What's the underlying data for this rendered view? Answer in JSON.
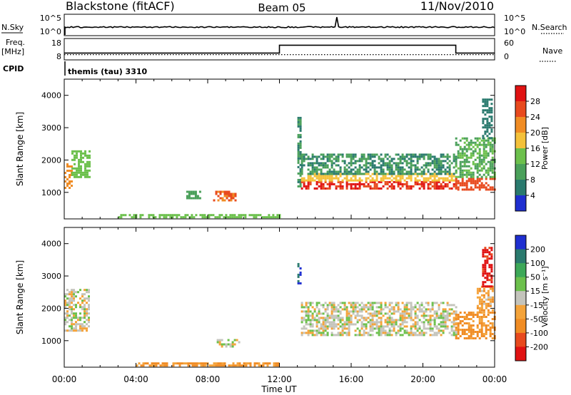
{
  "header": {
    "title": "Blackstone (fitACF)",
    "beam": "Beam 05",
    "date": "11/Nov/2010"
  },
  "colors": {
    "axis": "#000000",
    "neutral_gray": "#c4c4bc",
    "power_scale": [
      "#1f2fd0",
      "#2a7a6e",
      "#4aa05a",
      "#6cc04c",
      "#f4c13a",
      "#f08c24",
      "#e84a1e",
      "#e01212"
    ],
    "velocity_scale": [
      "#1f2fd0",
      "#2a7a6e",
      "#3da858",
      "#6cc04c",
      "#c4c4bc",
      "#f4a33a",
      "#f08c24",
      "#e84a1e",
      "#e01212"
    ]
  },
  "chart_data": [
    {
      "type": "line",
      "title": "",
      "panel": "noise",
      "left_label": "N.Sky",
      "right_label": "N.Search",
      "left_ticks": [
        "10^5",
        "10^0"
      ],
      "right_ticks": [
        "10^5",
        "10^0"
      ],
      "description_values": {
        "n_sky_level": "near 10^0 with small fluctuations, one spike near 15:10 UT",
        "n_search_level": "near 10^0"
      }
    },
    {
      "type": "line",
      "title": "",
      "panel": "frequency",
      "left_label": "Freq.",
      "left_unit": "[MHz]",
      "right_label": "Nave",
      "left_ticks": [
        "18",
        "8"
      ],
      "right_ticks": [
        "60",
        "0"
      ],
      "series": [
        {
          "name": "Freq.",
          "x": [
            "00:00",
            "12:00",
            "12:00",
            "21:50",
            "21:50",
            "24:00"
          ],
          "values": [
            11,
            11,
            16,
            16,
            11,
            11
          ]
        },
        {
          "name": "Nave",
          "x": [
            "00:00",
            "24:00"
          ],
          "values": [
            12,
            12
          ]
        }
      ]
    },
    {
      "type": "table",
      "title": "",
      "panel": "cpid",
      "left_label": "CPID",
      "text": "themis (tau) 3310"
    },
    {
      "type": "heatmap",
      "title": "",
      "panel": "power",
      "xlabel": "",
      "ylabel": "Slant Range [km]",
      "x_ticks": [
        "00:00",
        "04:00",
        "08:00",
        "12:00",
        "16:00",
        "20:00",
        "00:00"
      ],
      "xlim_hours": [
        0,
        24
      ],
      "y_ticks": [
        1000,
        2000,
        3000,
        4000
      ],
      "ylim": [
        180,
        4500
      ],
      "colorbar": {
        "label": "Power [dB]",
        "ticks": [
          "4",
          "8",
          "12",
          "16",
          "20",
          "24",
          "28"
        ],
        "range": [
          0,
          32
        ]
      },
      "features": [
        {
          "x0": 0.0,
          "x1": 0.4,
          "y0": 1150,
          "y1": 1900,
          "value": 22
        },
        {
          "x0": 0.4,
          "x1": 1.4,
          "y0": 1450,
          "y1": 2300,
          "value": 14
        },
        {
          "x0": 6.8,
          "x1": 7.6,
          "y0": 800,
          "y1": 1050,
          "value": 10
        },
        {
          "x0": 8.3,
          "x1": 9.5,
          "y0": 780,
          "y1": 1050,
          "value": 24
        },
        {
          "x0": 3.0,
          "x1": 12.0,
          "y0": 200,
          "y1": 330,
          "value": 14
        },
        {
          "x0": 13.0,
          "x1": 13.2,
          "y0": 1200,
          "y1": 3400,
          "value": 8
        },
        {
          "x0": 13.2,
          "x1": 21.8,
          "y0": 1100,
          "y1": 1350,
          "value": 28
        },
        {
          "x0": 13.2,
          "x1": 21.8,
          "y0": 1350,
          "y1": 1600,
          "value": 18
        },
        {
          "x0": 13.2,
          "x1": 21.8,
          "y0": 1600,
          "y1": 2200,
          "value": 8
        },
        {
          "x0": 21.8,
          "x1": 24.0,
          "y0": 1100,
          "y1": 1450,
          "value": 26
        },
        {
          "x0": 21.8,
          "x1": 24.0,
          "y0": 1450,
          "y1": 2700,
          "value": 12
        },
        {
          "x0": 23.3,
          "x1": 23.8,
          "y0": 2700,
          "y1": 3900,
          "value": 6
        }
      ]
    },
    {
      "type": "heatmap",
      "title": "",
      "panel": "velocity",
      "xlabel": "Time UT",
      "ylabel": "Slant Range [km]",
      "x_ticks": [
        "00:00",
        "04:00",
        "08:00",
        "12:00",
        "16:00",
        "20:00",
        "00:00"
      ],
      "xlim_hours": [
        0,
        24
      ],
      "y_ticks": [
        1000,
        2000,
        3000,
        4000
      ],
      "ylim": [
        180,
        4500
      ],
      "colorbar": {
        "label": "Velocity [m s⁻¹]",
        "ticks": [
          "200",
          "100",
          "50",
          "15",
          "-15",
          "-50",
          "-100",
          "-200"
        ],
        "range": [
          -250,
          250
        ]
      },
      "features": [
        {
          "x0": 0.0,
          "x1": 1.4,
          "y0": 1300,
          "y1": 2600,
          "value": 0
        },
        {
          "x0": 8.5,
          "x1": 9.8,
          "y0": 800,
          "y1": 1050,
          "value": 0
        },
        {
          "x0": 4.0,
          "x1": 12.0,
          "y0": 200,
          "y1": 330,
          "value": -60
        },
        {
          "x0": 13.0,
          "x1": 13.2,
          "y0": 2800,
          "y1": 3400,
          "value": 200
        },
        {
          "x0": 13.2,
          "x1": 21.8,
          "y0": 1150,
          "y1": 2200,
          "value": 0
        },
        {
          "x0": 21.8,
          "x1": 24.0,
          "y0": 1100,
          "y1": 1900,
          "value": -60
        },
        {
          "x0": 23.0,
          "x1": 23.9,
          "y0": 1900,
          "y1": 2700,
          "value": -40
        },
        {
          "x0": 23.3,
          "x1": 23.8,
          "y0": 2700,
          "y1": 3900,
          "value": -220
        }
      ]
    }
  ]
}
